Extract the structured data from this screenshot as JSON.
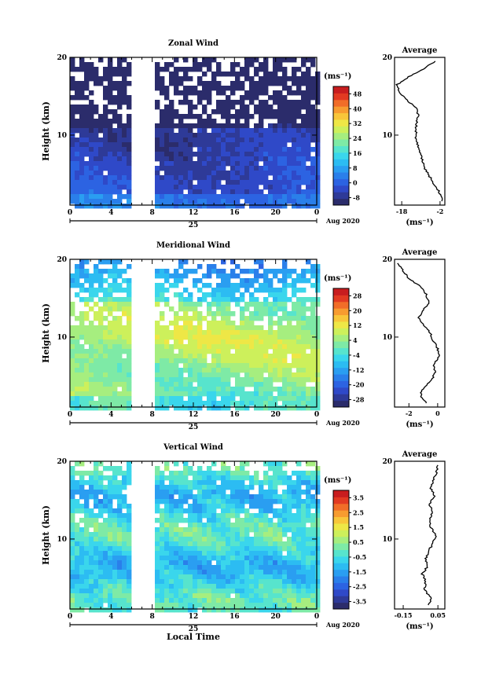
{
  "chart_data": [
    {
      "type": "heatmap",
      "title": "Zonal Wind",
      "ylabel": "Height (km)",
      "yticks": [
        "10",
        "20"
      ],
      "xticks": [
        "0",
        "4",
        "8",
        "12",
        "16",
        "20",
        "0"
      ],
      "date_label": "25",
      "month_label": "Aug 2020",
      "xlim": [
        0,
        24
      ],
      "ylim": [
        1,
        20
      ],
      "colorbar": {
        "unit": "(ms⁻¹)",
        "ticks": [
          "48",
          "40",
          "32",
          "24",
          "16",
          "8",
          "0",
          "-8"
        ],
        "min": -12,
        "max": 52
      },
      "gap": [
        5.8,
        8.0
      ],
      "profile": {
        "title": "Average",
        "xticks": [
          "-18",
          "-2"
        ],
        "xlim": [
          -21,
          0
        ],
        "unit": "(ms⁻¹)",
        "heights": [
          1.5,
          2.5,
          3.5,
          4.5,
          5.5,
          6.5,
          7.5,
          8.5,
          9.5,
          10.5,
          11.5,
          12.5,
          13.5,
          14.5,
          15.5,
          16.5,
          17.5,
          18.5,
          19.5
        ],
        "values": [
          -1,
          -2,
          -4,
          -6,
          -8,
          -9,
          -10,
          -11,
          -12,
          -12,
          -12,
          -11,
          -12,
          -16,
          -19,
          -20,
          -15,
          -9,
          -4
        ]
      }
    },
    {
      "type": "heatmap",
      "title": "Meridional Wind",
      "ylabel": "Height (km)",
      "yticks": [
        "10",
        "20"
      ],
      "xticks": [
        "0",
        "4",
        "8",
        "12",
        "16",
        "20",
        "0"
      ],
      "date_label": "25",
      "month_label": "Aug 2020",
      "xlim": [
        0,
        24
      ],
      "ylim": [
        1,
        20
      ],
      "colorbar": {
        "unit": "(ms⁻¹)",
        "ticks": [
          "28",
          "20",
          "12",
          "4",
          "-4",
          "-12",
          "-20",
          "-28"
        ],
        "min": -32,
        "max": 32
      },
      "gap": [
        5.8,
        8.0
      ],
      "profile": {
        "title": "Average",
        "xticks": [
          "-2",
          "0"
        ],
        "xlim": [
          -3,
          0.5
        ],
        "unit": "(ms⁻¹)",
        "heights": [
          1.5,
          2.5,
          3.5,
          4.5,
          5.5,
          6.5,
          7.5,
          8.5,
          9.5,
          10.5,
          11.5,
          12.5,
          13.5,
          14.5,
          15.5,
          16.5,
          17.5,
          18.5,
          19.5
        ],
        "values": [
          -0.8,
          -1.2,
          -1.0,
          -0.4,
          -0.2,
          -0.3,
          0.1,
          0.0,
          -0.3,
          -0.5,
          -1.0,
          -1.3,
          -1.0,
          -0.6,
          -0.8,
          -1.2,
          -2.0,
          -2.4,
          -2.8
        ]
      }
    },
    {
      "type": "heatmap",
      "title": "Vertical Wind",
      "ylabel": "Height (km)",
      "xlabel": "Local Time",
      "yticks": [
        "10",
        "20"
      ],
      "xticks": [
        "0",
        "4",
        "8",
        "12",
        "16",
        "20",
        "0"
      ],
      "date_label": "25",
      "month_label": "Aug 2020",
      "xlim": [
        0,
        24
      ],
      "ylim": [
        1,
        20
      ],
      "colorbar": {
        "unit": "(ms⁻¹)",
        "ticks": [
          "3.5",
          "2.5",
          "1.5",
          "0.5",
          "-0.5",
          "-1.5",
          "-2.5",
          "-3.5"
        ],
        "min": -4,
        "max": 4
      },
      "gap": [
        5.8,
        8.0
      ],
      "profile": {
        "title": "Average",
        "xticks": [
          "-0.15",
          "0.05"
        ],
        "xlim": [
          -0.2,
          0.09
        ],
        "unit": "(ms⁻¹)",
        "heights": [
          1.5,
          2.5,
          3.5,
          4.5,
          5.5,
          6.5,
          7.5,
          8.5,
          9.5,
          10.5,
          11.5,
          12.5,
          13.5,
          14.5,
          15.5,
          16.5,
          17.5,
          18.5,
          19.5
        ],
        "values": [
          0.0,
          0.01,
          -0.03,
          -0.02,
          -0.04,
          -0.01,
          -0.02,
          0.0,
          0.02,
          0.04,
          0.01,
          0.0,
          0.02,
          0.0,
          0.03,
          0.01,
          0.02,
          0.04,
          0.05
        ]
      }
    }
  ]
}
